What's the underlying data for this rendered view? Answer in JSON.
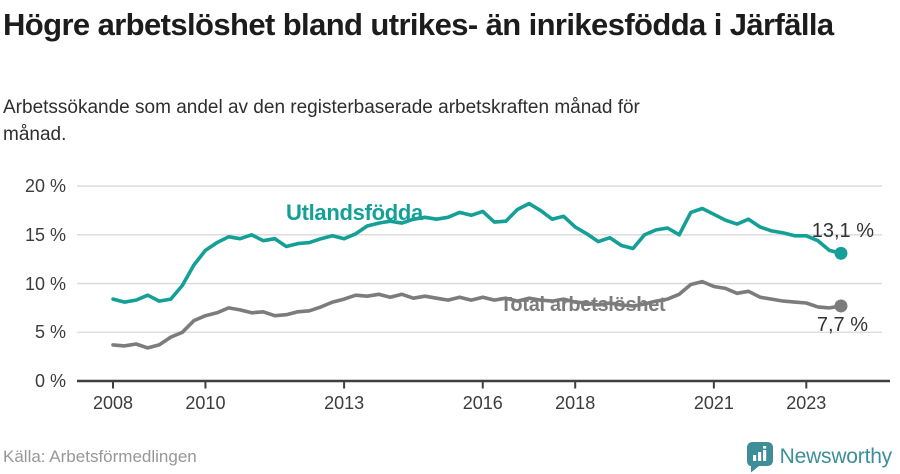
{
  "chart_data": {
    "type": "line",
    "title": "Högre arbetslöshet bland utrikes- än inrikesfödda i Järfälla",
    "subtitle": "Arbetssökande som andel av den registerbaserade arbetskraften månad för månad.",
    "xlabel": "",
    "ylabel": "",
    "xlim": [
      2008,
      2023.75
    ],
    "ylim": [
      0,
      20
    ],
    "grid": "horizontal",
    "x": [
      2008,
      2008.25,
      2008.5,
      2008.75,
      2009,
      2009.25,
      2009.5,
      2009.75,
      2010,
      2010.25,
      2010.5,
      2010.75,
      2011,
      2011.25,
      2011.5,
      2011.75,
      2012,
      2012.25,
      2012.5,
      2012.75,
      2013,
      2013.25,
      2013.5,
      2013.75,
      2014,
      2014.25,
      2014.5,
      2014.75,
      2015,
      2015.25,
      2015.5,
      2015.75,
      2016,
      2016.25,
      2016.5,
      2016.75,
      2017,
      2017.25,
      2017.5,
      2017.75,
      2018,
      2018.25,
      2018.5,
      2018.75,
      2019,
      2019.25,
      2019.5,
      2019.75,
      2020,
      2020.25,
      2020.5,
      2020.75,
      2021,
      2021.25,
      2021.5,
      2021.75,
      2022,
      2022.25,
      2022.5,
      2022.75,
      2023,
      2023.25,
      2023.5,
      2023.75
    ],
    "series": [
      {
        "name": "Utlandsfödda",
        "color": "#14A096",
        "end_label": "13,1 %",
        "end_value": 13.1,
        "values": [
          8.4,
          8.1,
          8.3,
          8.8,
          8.2,
          8.4,
          9.8,
          11.9,
          13.4,
          14.2,
          14.8,
          14.6,
          15.0,
          14.4,
          14.6,
          13.8,
          14.1,
          14.2,
          14.6,
          14.9,
          14.6,
          15.1,
          15.9,
          16.2,
          16.4,
          16.2,
          16.6,
          16.8,
          16.6,
          16.8,
          17.3,
          17.0,
          17.4,
          16.3,
          16.4,
          17.6,
          18.2,
          17.5,
          16.6,
          16.9,
          15.8,
          15.1,
          14.3,
          14.7,
          13.9,
          13.6,
          15.0,
          15.5,
          15.7,
          15.0,
          17.3,
          17.7,
          17.1,
          16.5,
          16.1,
          16.6,
          15.8,
          15.4,
          15.2,
          14.9,
          14.9,
          14.4,
          13.4,
          13.1
        ]
      },
      {
        "name": "Total arbetslöshet",
        "color": "#7C7C7C",
        "end_label": "7,7 %",
        "end_value": 7.7,
        "values": [
          3.7,
          3.6,
          3.8,
          3.4,
          3.7,
          4.5,
          5.0,
          6.2,
          6.7,
          7.0,
          7.5,
          7.3,
          7.0,
          7.1,
          6.7,
          6.8,
          7.1,
          7.2,
          7.6,
          8.1,
          8.4,
          8.8,
          8.7,
          8.9,
          8.6,
          8.9,
          8.5,
          8.7,
          8.5,
          8.3,
          8.6,
          8.3,
          8.6,
          8.3,
          8.5,
          8.2,
          8.5,
          8.3,
          8.2,
          8.4,
          8.1,
          8.0,
          7.8,
          8.0,
          7.8,
          7.7,
          7.9,
          8.2,
          8.4,
          8.9,
          9.9,
          10.2,
          9.7,
          9.5,
          9.0,
          9.2,
          8.6,
          8.4,
          8.2,
          8.1,
          8.0,
          7.6,
          7.5,
          7.7
        ]
      }
    ],
    "xticks": {
      "values": [
        2008,
        2010,
        2013,
        2016,
        2018,
        2021,
        2023
      ],
      "labels": [
        "2008",
        "2010",
        "2013",
        "2016",
        "2018",
        "2021",
        "2023"
      ]
    },
    "yticks": {
      "values": [
        0,
        5,
        10,
        15,
        20
      ],
      "labels": [
        "0 %",
        "5 %",
        "10 %",
        "15 %",
        "20 %"
      ]
    }
  },
  "footer": {
    "source": "Källa: Arbetsförmedlingen",
    "brand_name": "Newsworthy",
    "brand_color": "#3D8E99"
  }
}
